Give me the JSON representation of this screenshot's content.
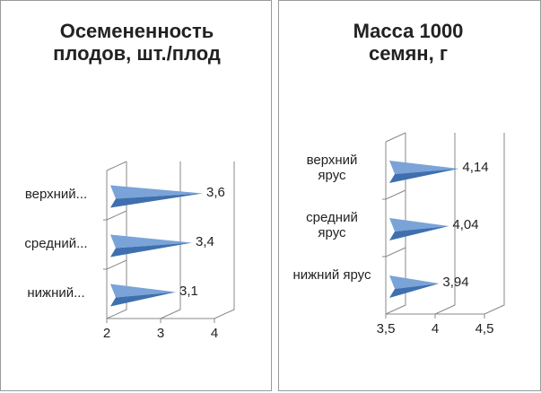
{
  "chart_data": [
    {
      "type": "cone-bar",
      "title": "Осемененность плодов, шт./плод",
      "categories": [
        "верхний...",
        "средний...",
        "нижний..."
      ],
      "values": [
        3.6,
        3.4,
        3.1
      ],
      "value_labels": [
        "3,6",
        "3,4",
        "3,1"
      ],
      "xlim": [
        2,
        4
      ],
      "xticks": [
        2,
        3,
        4
      ],
      "color": "#4f81bd",
      "grid": true
    },
    {
      "type": "cone-bar",
      "title": "Масса 1000 семян, г",
      "categories": [
        "верхний ярус",
        "средний ярус",
        "нижний ярус"
      ],
      "values": [
        4.14,
        4.04,
        3.94
      ],
      "value_labels": [
        "4,14",
        "4,04",
        "3,94"
      ],
      "xlim": [
        3.5,
        4.5
      ],
      "xticks": [
        {
          "value": 3.5,
          "label": "3,5"
        },
        4,
        {
          "value": 4.5,
          "label": "4,5"
        }
      ],
      "color": "#4f81bd",
      "grid": true
    }
  ]
}
